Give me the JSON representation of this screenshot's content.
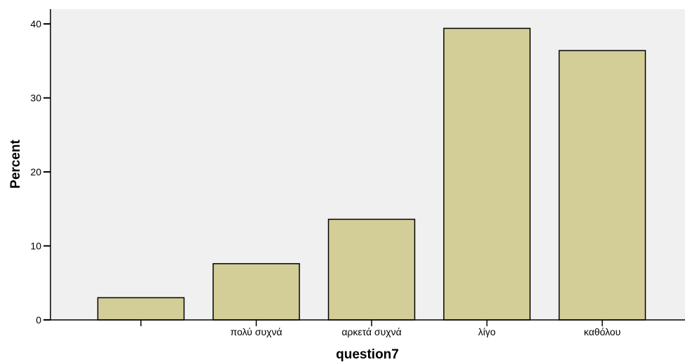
{
  "chart_data": {
    "type": "bar",
    "categories": [
      "",
      "πολύ συχνά",
      "αρκετά συχνά",
      "λίγο",
      "καθόλου"
    ],
    "values": [
      3.0,
      7.6,
      13.6,
      39.4,
      36.4
    ],
    "xlabel": "question7",
    "ylabel": "Percent",
    "ylim": [
      0,
      42
    ],
    "yticks": [
      0,
      10,
      20,
      30,
      40
    ],
    "grid": false,
    "colors": {
      "plot_background": "#f0f0f0",
      "bar_fill": "#d3ce97",
      "bar_stroke": "#000000"
    }
  }
}
